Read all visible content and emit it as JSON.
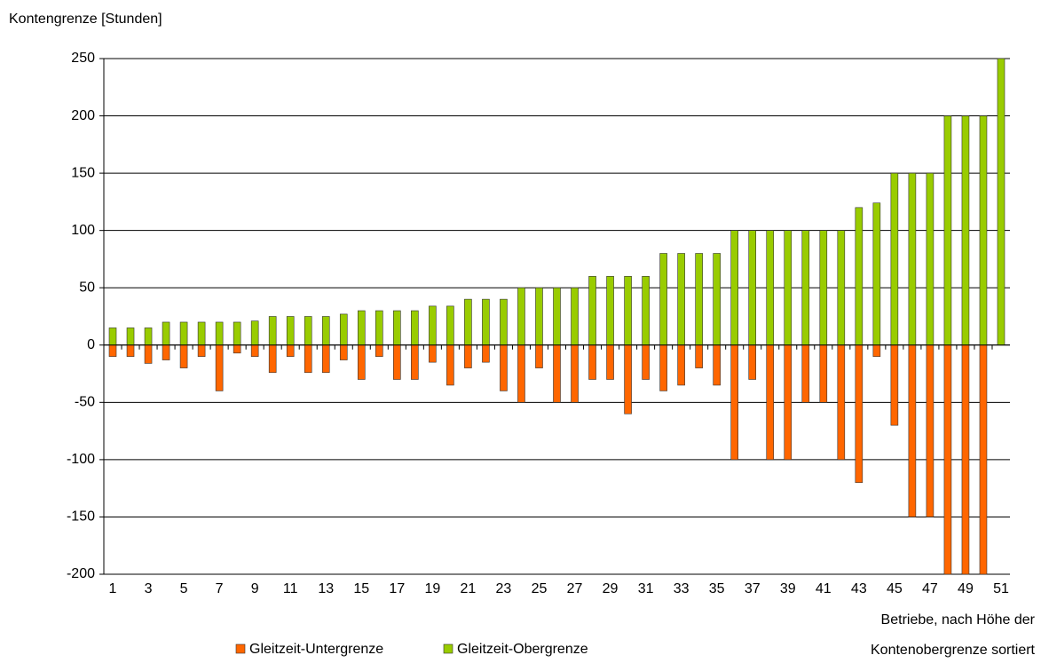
{
  "chart_data": {
    "type": "bar",
    "y_label": "Kontengrenze [Stunden]",
    "x_label": [
      "Betriebe, nach Höhe der",
      "Kontenobergrenze sortiert"
    ],
    "categories": [
      "1",
      null,
      "3",
      null,
      "5",
      null,
      "7",
      null,
      "9",
      null,
      "11",
      null,
      "13",
      null,
      "15",
      null,
      "17",
      null,
      "19",
      null,
      "21",
      null,
      "23",
      null,
      "25",
      null,
      "27",
      null,
      "29",
      null,
      "31",
      null,
      "33",
      null,
      "35",
      null,
      "37",
      null,
      "39",
      null,
      "41",
      null,
      "43",
      null,
      "45",
      null,
      "47",
      null,
      "49",
      null,
      "51"
    ],
    "series": [
      {
        "name": "Gleitzeit-Untergrenze",
        "color": "#ff6600",
        "values": [
          -10,
          -10,
          -16,
          -13,
          -20,
          -10,
          -40,
          -7,
          -10,
          -24,
          -10,
          -24,
          -24,
          -13,
          -30,
          -10,
          -30,
          -30,
          -15,
          -35,
          -20,
          -15,
          -40,
          -50,
          -20,
          -50,
          -50,
          -30,
          -30,
          -60,
          -30,
          -40,
          -35,
          -20,
          -35,
          -100,
          -30,
          -100,
          -100,
          -50,
          -50,
          -100,
          -120,
          -10,
          -70,
          -150,
          -150,
          -200,
          -200,
          -200,
          null
        ]
      },
      {
        "name": "Gleitzeit-Obergrenze",
        "color": "#99cc00",
        "values": [
          15,
          15,
          15,
          20,
          20,
          20,
          20,
          20,
          21,
          25,
          25,
          25,
          25,
          27,
          30,
          30,
          30,
          30,
          34,
          34,
          40,
          40,
          40,
          50,
          50,
          50,
          50,
          60,
          60,
          60,
          60,
          80,
          80,
          80,
          80,
          100,
          100,
          100,
          100,
          100,
          100,
          100,
          120,
          124,
          150,
          150,
          150,
          200,
          200,
          200,
          250
        ]
      }
    ],
    "ylim": [
      -200,
      250
    ],
    "yticks": [
      -200,
      -150,
      -100,
      -50,
      0,
      50,
      100,
      150,
      200,
      250
    ],
    "grid": true
  }
}
